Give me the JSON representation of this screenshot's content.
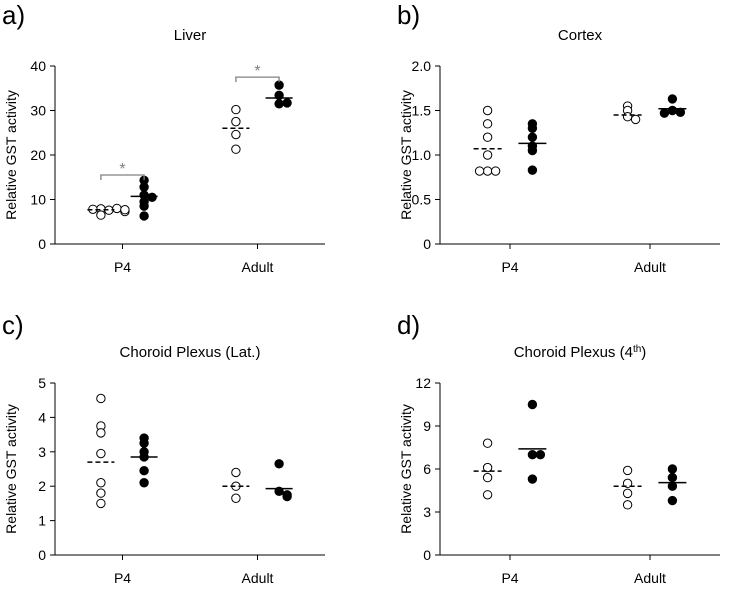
{
  "chart_data": [
    {
      "type": "dotplot",
      "panel": "a)",
      "title": [
        {
          "text": "Liver"
        }
      ],
      "ylabel": "Relative GST activity",
      "categories": [
        "P4",
        "Adult"
      ],
      "ylim": [
        0,
        40
      ],
      "yticks": [
        0,
        10,
        20,
        30,
        40
      ],
      "series": [
        {
          "marker": "open",
          "color": "#000000",
          "mean_line": "dashed",
          "values": [
            [
              7.9,
              7.6,
              7.8,
              8.0,
              6.5,
              7.3,
              7.7
            ],
            [
              30.2,
              27.5,
              24.6,
              21.3
            ]
          ],
          "means": [
            7.7,
            26.0
          ]
        },
        {
          "marker": "filled",
          "color": "#000000",
          "mean_line": "solid",
          "values": [
            [
              14.3,
              12.8,
              11.0,
              10.5,
              9.5,
              8.5,
              6.3
            ],
            [
              35.7,
              33.4,
              31.5,
              31.7
            ]
          ],
          "means": [
            10.7,
            32.8
          ]
        }
      ],
      "annotations": [
        {
          "text": "*",
          "category": 0,
          "y": 15.5
        },
        {
          "text": "*",
          "category": 1,
          "y": 37.5
        }
      ],
      "annotation_color": "#808080"
    },
    {
      "type": "dotplot",
      "panel": "b)",
      "title": [
        {
          "text": "Cortex"
        }
      ],
      "ylabel": "Relative GST activity",
      "categories": [
        "P4",
        "Adult"
      ],
      "ylim": [
        0,
        2.0
      ],
      "yticks": [
        0,
        {
          "value": 0.5,
          "label": "0.5"
        },
        {
          "value": 1.0,
          "label": "1.0"
        },
        {
          "value": 1.5,
          "label": "1.5"
        },
        {
          "value": 2.0,
          "label": "2.0"
        }
      ],
      "series": [
        {
          "marker": "open",
          "color": "#000000",
          "mean_line": "dashed",
          "values": [
            [
              1.5,
              1.35,
              1.2,
              1.0,
              0.82,
              0.82,
              0.82
            ],
            [
              1.55,
              1.5,
              1.43,
              1.4
            ]
          ],
          "means": [
            1.07,
            1.45
          ]
        },
        {
          "marker": "filled",
          "color": "#000000",
          "mean_line": "solid",
          "values": [
            [
              1.35,
              1.3,
              1.2,
              1.1,
              1.05,
              0.83
            ],
            [
              1.63,
              1.5,
              1.48,
              1.47
            ]
          ],
          "means": [
            1.13,
            1.52
          ]
        }
      ]
    },
    {
      "type": "dotplot",
      "panel": "c)",
      "title": [
        {
          "text": "Choroid Plexus (Lat.)"
        }
      ],
      "ylabel": "Relative GST activity",
      "categories": [
        "P4",
        "Adult"
      ],
      "ylim": [
        0,
        5
      ],
      "yticks": [
        0,
        1,
        2,
        3,
        4,
        5
      ],
      "series": [
        {
          "marker": "open",
          "color": "#000000",
          "mean_line": "dashed",
          "values": [
            [
              4.55,
              3.75,
              3.55,
              2.95,
              2.1,
              1.8,
              1.5
            ],
            [
              2.4,
              2.0,
              1.65
            ]
          ],
          "means": [
            2.7,
            2.0
          ]
        },
        {
          "marker": "filled",
          "color": "#000000",
          "mean_line": "solid",
          "values": [
            [
              3.4,
              3.25,
              3.0,
              2.85,
              2.45,
              2.1
            ],
            [
              2.65,
              1.85,
              1.75,
              1.7
            ]
          ],
          "means": [
            2.85,
            1.93
          ]
        }
      ]
    },
    {
      "type": "dotplot",
      "panel": "d)",
      "title": [
        {
          "text": "Choroid Plexus (4"
        },
        {
          "text": "th",
          "sup": true
        },
        {
          "text": ")"
        }
      ],
      "ylabel": "Relative GST activity",
      "categories": [
        "P4",
        "Adult"
      ],
      "ylim": [
        0,
        12
      ],
      "yticks": [
        0,
        3,
        6,
        9,
        12
      ],
      "series": [
        {
          "marker": "open",
          "color": "#000000",
          "mean_line": "dashed",
          "values": [
            [
              7.8,
              6.1,
              5.4,
              4.2
            ],
            [
              5.9,
              5.0,
              4.3,
              3.5
            ]
          ],
          "means": [
            5.85,
            4.8
          ]
        },
        {
          "marker": "filled",
          "color": "#000000",
          "mean_line": "solid",
          "values": [
            [
              10.5,
              7.0,
              7.0,
              5.3
            ],
            [
              6.0,
              5.4,
              4.8,
              3.8
            ]
          ],
          "means": [
            7.4,
            5.05
          ]
        }
      ]
    }
  ]
}
